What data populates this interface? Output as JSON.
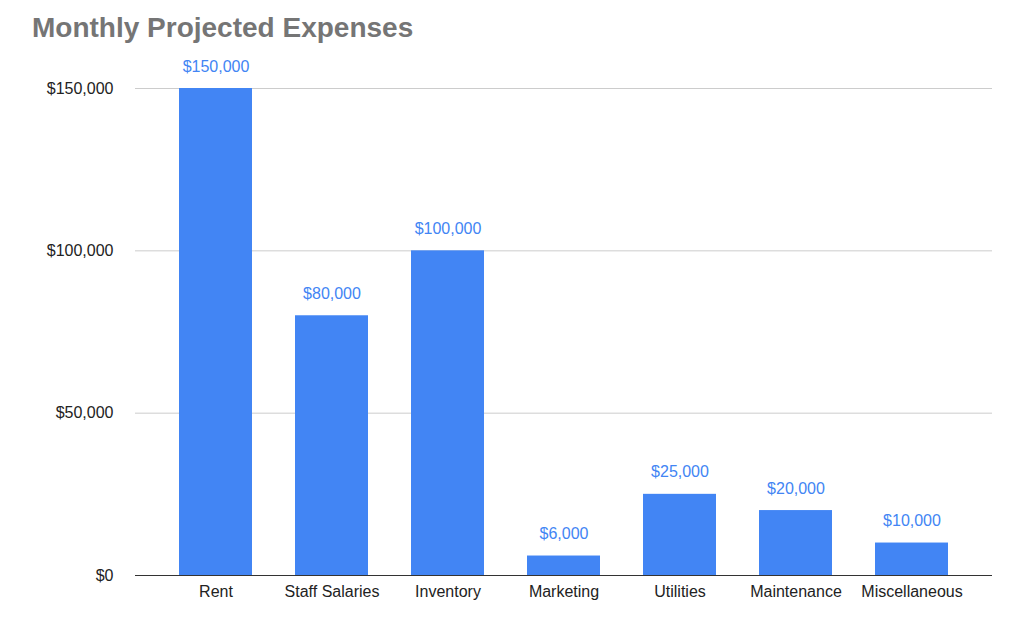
{
  "chart_data": {
    "type": "bar",
    "title": "Monthly Projected Expenses",
    "categories": [
      "Rent",
      "Staff Salaries",
      "Inventory",
      "Marketing",
      "Utilities",
      "Maintenance",
      "Miscellaneous"
    ],
    "values": [
      150000,
      80000,
      100000,
      6000,
      25000,
      20000,
      10000
    ],
    "value_labels": [
      "$150,000",
      "$80,000",
      "$100,000",
      "$6,000",
      "$25,000",
      "$20,000",
      "$10,000"
    ],
    "color": "#4285f4",
    "ylim": [
      0,
      150000
    ],
    "yticks": [
      {
        "value": 0,
        "label": "$0"
      },
      {
        "value": 50000,
        "label": "$50,000"
      },
      {
        "value": 100000,
        "label": "$100,000"
      },
      {
        "value": 150000,
        "label": "$150,000"
      }
    ],
    "grid": true,
    "data_labels": true
  }
}
